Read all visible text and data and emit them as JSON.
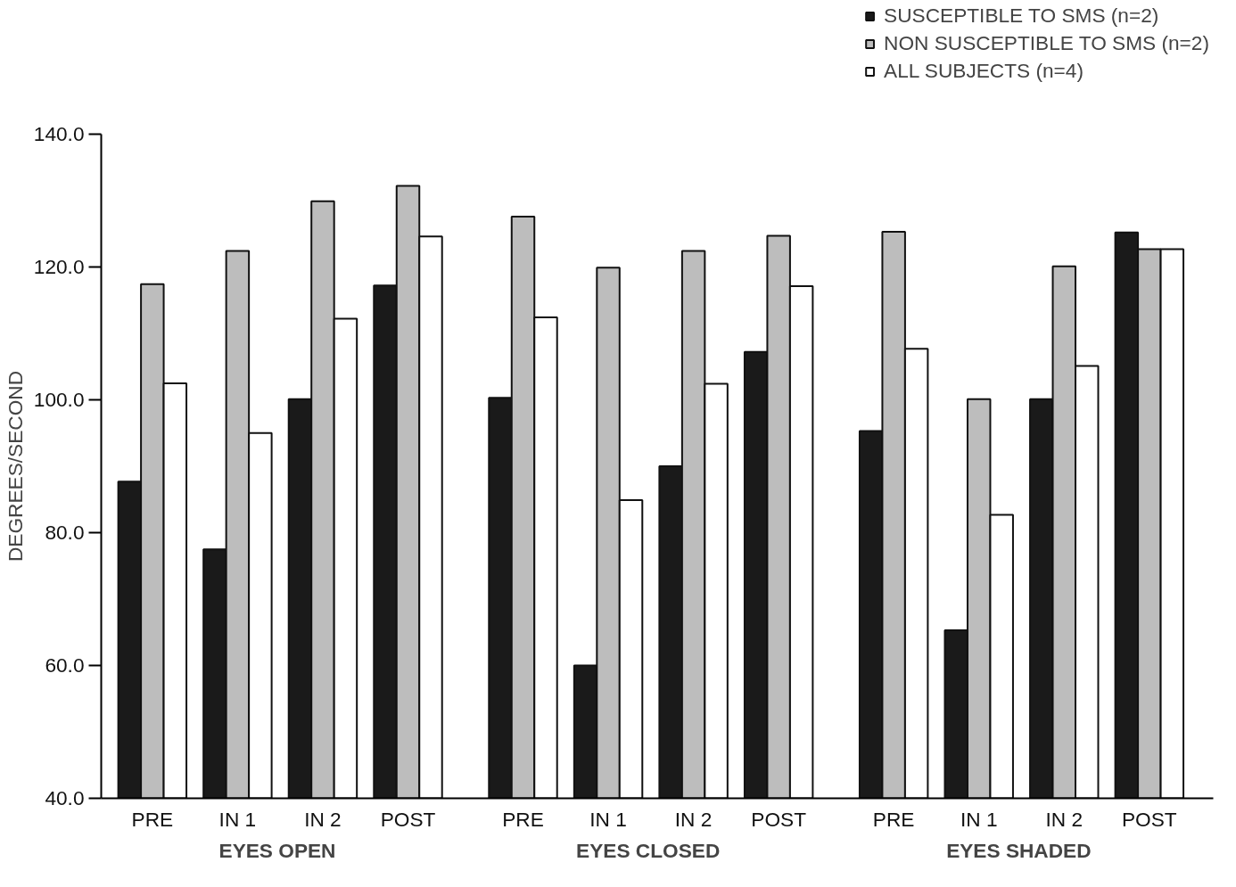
{
  "chart_data": {
    "type": "bar",
    "ylabel": "DEGREES/SECOND",
    "categories": [
      "PRE",
      "IN 1",
      "IN 2",
      "POST",
      "PRE",
      "IN 1",
      "IN 2",
      "POST",
      "PRE",
      "IN 1",
      "IN 2",
      "POST"
    ],
    "annotations": [
      "EYES  OPEN",
      "EYES  CLOSED",
      "EYES  SHADED"
    ],
    "series": [
      {
        "name": "SUSCEPTIBLE TO SMS (n=2)",
        "color": "#1a1a1a",
        "values": [
          87.7,
          77.5,
          100.1,
          117.2,
          100.3,
          60.0,
          90.0,
          107.2,
          95.3,
          65.3,
          100.1,
          125.2
        ]
      },
      {
        "name": "NON SUSCEPTIBLE TO SMS (n=2)",
        "color": "#bdbdbd",
        "values": [
          117.4,
          122.4,
          129.9,
          132.2,
          127.6,
          119.9,
          122.4,
          124.7,
          125.3,
          100.1,
          120.1,
          122.7
        ]
      },
      {
        "name": "ALL SUBJECTS (n=4)",
        "color": "#ffffff",
        "values": [
          102.5,
          95.0,
          112.2,
          124.6,
          112.4,
          84.9,
          102.4,
          117.1,
          107.7,
          82.7,
          105.1,
          122.7
        ]
      }
    ],
    "ylim": [
      40,
      140
    ],
    "yticks": [
      {
        "value": 40,
        "label": "40.0"
      },
      {
        "value": 60,
        "label": "60.0"
      },
      {
        "value": 80,
        "label": "80.0"
      },
      {
        "value": 100,
        "label": "100.0"
      },
      {
        "value": 120,
        "label": "120.0"
      },
      {
        "value": 140,
        "label": "140.0"
      }
    ],
    "grid": false,
    "legend": "top right"
  }
}
